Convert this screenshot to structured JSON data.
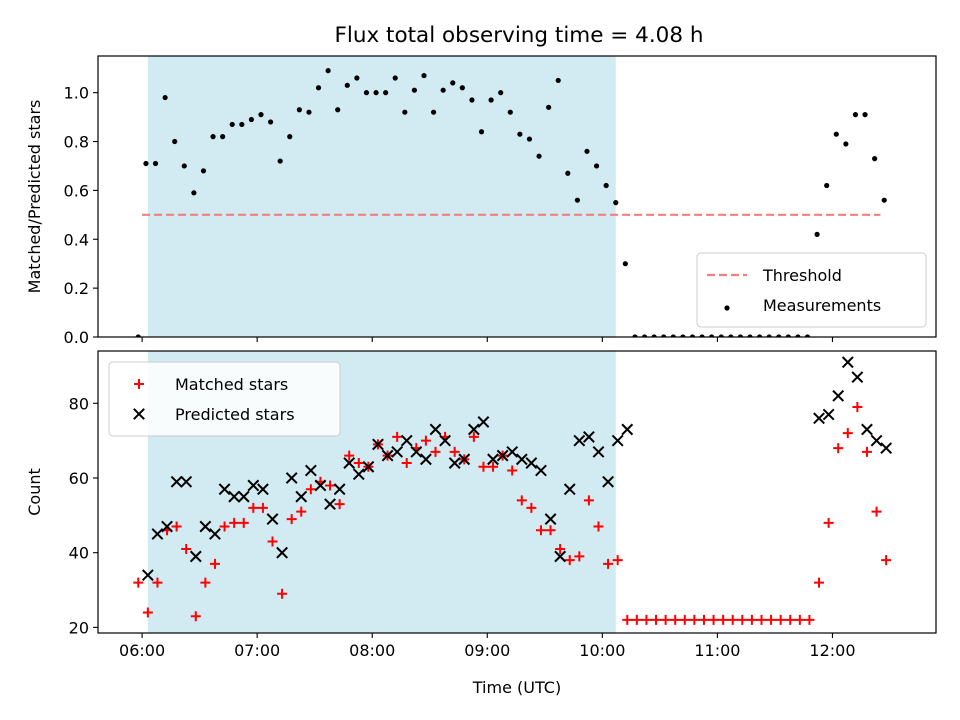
{
  "title": "Flux total observing time = 4.08 h",
  "chart_data": [
    {
      "type": "scatter",
      "title": "Flux total observing time = 4.08 h",
      "xlabel": "",
      "ylabel": "Matched/Predicted stars",
      "x_ticks": [
        "06:00",
        "07:00",
        "08:00",
        "09:00",
        "10:00",
        "11:00",
        "12:00"
      ],
      "y_ticks": [
        "0.0",
        "0.2",
        "0.4",
        "0.6",
        "0.8",
        "1.0"
      ],
      "xlim": [
        "05:37",
        "12:54"
      ],
      "ylim": [
        0,
        1.15
      ],
      "shaded_interval": [
        "06:03",
        "10:07"
      ],
      "shade_color": "#add8e6",
      "legend_position": "lower right",
      "threshold": {
        "name": "Threshold",
        "value": 0.5,
        "x_range": [
          "06:00",
          "12:25"
        ],
        "color": "#f08080",
        "style": "dashed"
      },
      "series": [
        {
          "name": "Measurements",
          "color": "#000000",
          "marker": "dot",
          "points": [
            [
              "05:58",
              0.0
            ],
            [
              "06:02",
              0.71
            ],
            [
              "06:07",
              0.71
            ],
            [
              "06:12",
              0.98
            ],
            [
              "06:17",
              0.8
            ],
            [
              "06:22",
              0.7
            ],
            [
              "06:27",
              0.59
            ],
            [
              "06:32",
              0.68
            ],
            [
              "06:37",
              0.82
            ],
            [
              "06:42",
              0.82
            ],
            [
              "06:47",
              0.87
            ],
            [
              "06:52",
              0.87
            ],
            [
              "06:57",
              0.89
            ],
            [
              "07:02",
              0.91
            ],
            [
              "07:07",
              0.88
            ],
            [
              "07:12",
              0.72
            ],
            [
              "07:17",
              0.82
            ],
            [
              "07:22",
              0.93
            ],
            [
              "07:27",
              0.92
            ],
            [
              "07:32",
              1.02
            ],
            [
              "07:37",
              1.09
            ],
            [
              "07:42",
              0.93
            ],
            [
              "07:47",
              1.03
            ],
            [
              "07:52",
              1.06
            ],
            [
              "07:57",
              1.0
            ],
            [
              "08:02",
              1.0
            ],
            [
              "08:07",
              1.0
            ],
            [
              "08:12",
              1.06
            ],
            [
              "08:17",
              0.92
            ],
            [
              "08:22",
              1.01
            ],
            [
              "08:27",
              1.07
            ],
            [
              "08:32",
              0.92
            ],
            [
              "08:37",
              1.01
            ],
            [
              "08:42",
              1.04
            ],
            [
              "08:47",
              1.02
            ],
            [
              "08:52",
              0.97
            ],
            [
              "08:57",
              0.84
            ],
            [
              "09:02",
              0.97
            ],
            [
              "09:07",
              1.0
            ],
            [
              "09:12",
              0.92
            ],
            [
              "09:17",
              0.83
            ],
            [
              "09:22",
              0.81
            ],
            [
              "09:27",
              0.74
            ],
            [
              "09:32",
              0.94
            ],
            [
              "09:37",
              1.05
            ],
            [
              "09:42",
              0.67
            ],
            [
              "09:47",
              0.56
            ],
            [
              "09:52",
              0.76
            ],
            [
              "09:57",
              0.7
            ],
            [
              "10:02",
              0.62
            ],
            [
              "10:07",
              0.55
            ],
            [
              "10:12",
              0.3
            ],
            [
              "10:17",
              0.0
            ],
            [
              "10:22",
              0.0
            ],
            [
              "10:27",
              0.0
            ],
            [
              "10:32",
              0.0
            ],
            [
              "10:37",
              0.0
            ],
            [
              "10:42",
              0.0
            ],
            [
              "10:47",
              0.0
            ],
            [
              "10:52",
              0.0
            ],
            [
              "10:57",
              0.0
            ],
            [
              "11:02",
              0.0
            ],
            [
              "11:07",
              0.0
            ],
            [
              "11:12",
              0.0
            ],
            [
              "11:17",
              0.0
            ],
            [
              "11:22",
              0.0
            ],
            [
              "11:27",
              0.0
            ],
            [
              "11:32",
              0.0
            ],
            [
              "11:37",
              0.0
            ],
            [
              "11:42",
              0.0
            ],
            [
              "11:47",
              0.0
            ],
            [
              "11:52",
              0.42
            ],
            [
              "11:57",
              0.62
            ],
            [
              "12:02",
              0.83
            ],
            [
              "12:07",
              0.79
            ],
            [
              "12:12",
              0.91
            ],
            [
              "12:17",
              0.91
            ],
            [
              "12:22",
              0.73
            ],
            [
              "12:27",
              0.56
            ]
          ]
        }
      ]
    },
    {
      "type": "scatter",
      "title": "",
      "xlabel": "Time (UTC)",
      "ylabel": "Count",
      "x_ticks": [
        "06:00",
        "07:00",
        "08:00",
        "09:00",
        "10:00",
        "11:00",
        "12:00"
      ],
      "y_ticks": [
        "20",
        "40",
        "60",
        "80"
      ],
      "xlim": [
        "05:37",
        "12:54"
      ],
      "ylim": [
        18.5,
        94
      ],
      "shaded_interval": [
        "06:03",
        "10:07"
      ],
      "shade_color": "#add8e6",
      "legend_position": "upper left",
      "series": [
        {
          "name": "Matched stars",
          "color": "#ff0000",
          "marker": "plus",
          "points": [
            [
              "05:58",
              32
            ],
            [
              "06:03",
              24
            ],
            [
              "06:08",
              32
            ],
            [
              "06:13",
              46
            ],
            [
              "06:18",
              47
            ],
            [
              "06:23",
              41
            ],
            [
              "06:28",
              23
            ],
            [
              "06:33",
              32
            ],
            [
              "06:38",
              37
            ],
            [
              "06:43",
              47
            ],
            [
              "06:48",
              48
            ],
            [
              "06:53",
              48
            ],
            [
              "06:58",
              52
            ],
            [
              "07:03",
              52
            ],
            [
              "07:08",
              43
            ],
            [
              "07:13",
              29
            ],
            [
              "07:18",
              49
            ],
            [
              "07:23",
              51
            ],
            [
              "07:28",
              57
            ],
            [
              "07:33",
              59
            ],
            [
              "07:38",
              58
            ],
            [
              "07:43",
              53
            ],
            [
              "07:48",
              66
            ],
            [
              "07:53",
              64
            ],
            [
              "07:58",
              63
            ],
            [
              "08:03",
              69
            ],
            [
              "08:08",
              66
            ],
            [
              "08:13",
              71
            ],
            [
              "08:18",
              64
            ],
            [
              "08:23",
              68
            ],
            [
              "08:28",
              70
            ],
            [
              "08:33",
              67
            ],
            [
              "08:38",
              71
            ],
            [
              "08:43",
              67
            ],
            [
              "08:48",
              65
            ],
            [
              "08:53",
              71
            ],
            [
              "08:58",
              63
            ],
            [
              "09:03",
              63
            ],
            [
              "09:08",
              66
            ],
            [
              "09:13",
              62
            ],
            [
              "09:18",
              54
            ],
            [
              "09:23",
              52
            ],
            [
              "09:28",
              46
            ],
            [
              "09:33",
              46
            ],
            [
              "09:38",
              41
            ],
            [
              "09:43",
              38
            ],
            [
              "09:48",
              39
            ],
            [
              "09:53",
              54
            ],
            [
              "09:58",
              47
            ],
            [
              "10:03",
              37
            ],
            [
              "10:08",
              38
            ],
            [
              "10:13",
              22
            ],
            [
              "10:18",
              22
            ],
            [
              "10:23",
              22
            ],
            [
              "10:28",
              22
            ],
            [
              "10:33",
              22
            ],
            [
              "10:38",
              22
            ],
            [
              "10:43",
              22
            ],
            [
              "10:48",
              22
            ],
            [
              "10:53",
              22
            ],
            [
              "10:58",
              22
            ],
            [
              "11:03",
              22
            ],
            [
              "11:08",
              22
            ],
            [
              "11:13",
              22
            ],
            [
              "11:18",
              22
            ],
            [
              "11:23",
              22
            ],
            [
              "11:28",
              22
            ],
            [
              "11:33",
              22
            ],
            [
              "11:38",
              22
            ],
            [
              "11:43",
              22
            ],
            [
              "11:48",
              22
            ],
            [
              "11:53",
              32
            ],
            [
              "11:58",
              48
            ],
            [
              "12:03",
              68
            ],
            [
              "12:08",
              72
            ],
            [
              "12:13",
              79
            ],
            [
              "12:18",
              67
            ],
            [
              "12:23",
              51
            ],
            [
              "12:28",
              38
            ]
          ]
        },
        {
          "name": "Predicted stars",
          "color": "#000000",
          "marker": "x",
          "points": [
            [
              "06:03",
              34
            ],
            [
              "06:08",
              45
            ],
            [
              "06:13",
              47
            ],
            [
              "06:18",
              59
            ],
            [
              "06:23",
              59
            ],
            [
              "06:28",
              39
            ],
            [
              "06:33",
              47
            ],
            [
              "06:38",
              45
            ],
            [
              "06:43",
              57
            ],
            [
              "06:48",
              55
            ],
            [
              "06:53",
              55
            ],
            [
              "06:58",
              58
            ],
            [
              "07:03",
              57
            ],
            [
              "07:08",
              49
            ],
            [
              "07:13",
              40
            ],
            [
              "07:18",
              60
            ],
            [
              "07:23",
              55
            ],
            [
              "07:28",
              62
            ],
            [
              "07:33",
              58
            ],
            [
              "07:38",
              53
            ],
            [
              "07:43",
              57
            ],
            [
              "07:48",
              64
            ],
            [
              "07:53",
              61
            ],
            [
              "07:58",
              63
            ],
            [
              "08:03",
              69
            ],
            [
              "08:08",
              66
            ],
            [
              "08:13",
              67
            ],
            [
              "08:18",
              70
            ],
            [
              "08:23",
              67
            ],
            [
              "08:28",
              65
            ],
            [
              "08:33",
              73
            ],
            [
              "08:38",
              70
            ],
            [
              "08:43",
              64
            ],
            [
              "08:48",
              65
            ],
            [
              "08:53",
              73
            ],
            [
              "08:58",
              75
            ],
            [
              "09:03",
              65
            ],
            [
              "09:08",
              66
            ],
            [
              "09:13",
              67
            ],
            [
              "09:18",
              65
            ],
            [
              "09:23",
              64
            ],
            [
              "09:28",
              62
            ],
            [
              "09:33",
              49
            ],
            [
              "09:38",
              39
            ],
            [
              "09:43",
              57
            ],
            [
              "09:48",
              70
            ],
            [
              "09:53",
              71
            ],
            [
              "09:58",
              67
            ],
            [
              "10:03",
              59
            ],
            [
              "10:08",
              70
            ],
            [
              "10:13",
              73
            ],
            [
              "11:53",
              76
            ],
            [
              "11:58",
              77
            ],
            [
              "12:03",
              82
            ],
            [
              "12:08",
              91
            ],
            [
              "12:13",
              87
            ],
            [
              "12:18",
              73
            ],
            [
              "12:23",
              70
            ],
            [
              "12:28",
              68
            ]
          ]
        }
      ]
    }
  ]
}
